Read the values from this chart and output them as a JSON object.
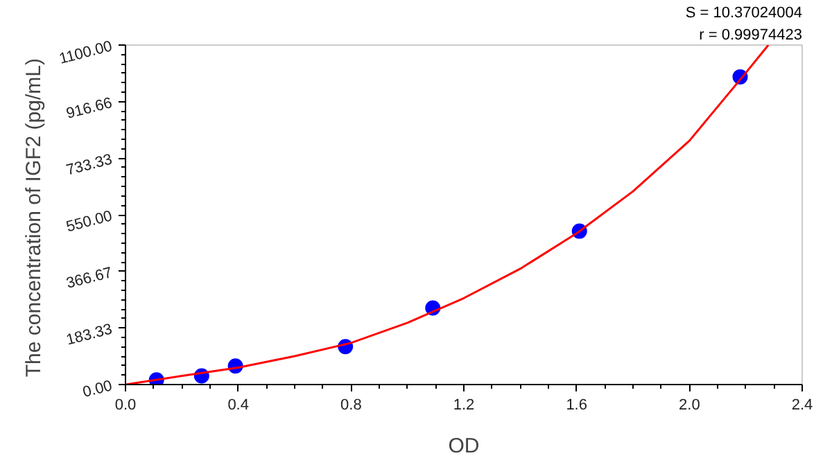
{
  "chart_data": {
    "type": "scatter",
    "xlabel": "OD",
    "ylabel": "The concentration of  IGF2 (pg/mL)",
    "annotations": [
      "S = 10.37024004",
      "r = 0.99974423"
    ],
    "xlim": [
      0,
      2.4
    ],
    "ylim": [
      0,
      1100
    ],
    "xticks": [
      {
        "value": 0,
        "label": "0.0"
      },
      {
        "value": 0.4,
        "label": "0.4"
      },
      {
        "value": 0.8,
        "label": "0.8"
      },
      {
        "value": 1.2,
        "label": "1.2"
      },
      {
        "value": 1.6,
        "label": "1.6"
      },
      {
        "value": 2.0,
        "label": "2.0"
      },
      {
        "value": 2.4,
        "label": "2.4"
      }
    ],
    "yticks": [
      {
        "value": 0,
        "label": "0.00"
      },
      {
        "value": 183.33,
        "label": "183.33"
      },
      {
        "value": 366.67,
        "label": "366.67"
      },
      {
        "value": 550,
        "label": "550.00"
      },
      {
        "value": 733.33,
        "label": "733.33"
      },
      {
        "value": 916.66,
        "label": "916.66"
      },
      {
        "value": 1100,
        "label": "1100.00"
      }
    ],
    "grid": false,
    "series": [
      {
        "color": "#0000ff",
        "marker": "circle",
        "x": [
          0.11,
          0.27,
          0.39,
          0.78,
          1.09,
          1.61,
          2.18
        ],
        "values": [
          15,
          28,
          60,
          123,
          248,
          497,
          997
        ]
      },
      {
        "type": "line",
        "color": "#ff0000",
        "line_style": "solid",
        "marker": "none",
        "x": [
          0,
          0.2,
          0.4,
          0.6,
          0.8,
          1.0,
          1.2,
          1.4,
          1.6,
          1.8,
          2.0,
          2.2,
          2.28
        ],
        "values": [
          0,
          28,
          55,
          92,
          135,
          200,
          280,
          375,
          490,
          626,
          790,
          1010,
          1100
        ]
      }
    ]
  }
}
